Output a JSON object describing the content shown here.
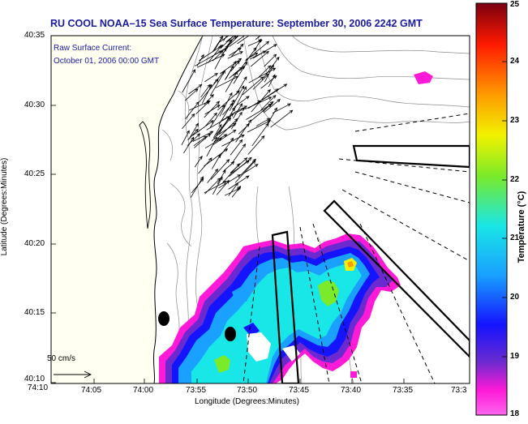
{
  "title": "RU COOL  NOAA–15  Sea Surface Temperature:  September 30, 2006 2242 GMT",
  "current_label_line1": "Raw Surface Current:",
  "current_label_line2": "October 01, 2006 00:00 GMT",
  "scale_label": "50 cm/s",
  "x_axis_label": "Longitude (Degrees:Minutes)",
  "y_axis_label": "Latitude (Degrees:Minutes)",
  "x_ticks": [
    "74:10",
    "74:05",
    "74:00",
    "73:55",
    "73:50",
    "73:45",
    "73:40",
    "73:35",
    "73:3"
  ],
  "y_ticks": [
    "40:35",
    "40:30",
    "40:25",
    "40:20",
    "40:15",
    "40:10"
  ],
  "colorbar": {
    "label": "Temperature (°C)",
    "ticks": [
      "25",
      "24",
      "23",
      "22",
      "21",
      "20",
      "19",
      "18"
    ],
    "colors": {
      "max": "#7a0010",
      "red": "#ff1a00",
      "orange": "#ff9900",
      "yellow": "#f2f200",
      "green": "#7aea2a",
      "cyan": "#19e6e6",
      "sky": "#1aa0ff",
      "blue": "#1414ff",
      "violet": "#6a2acf",
      "magenta": "#ff1ad8",
      "pink": "#ff66ee"
    }
  },
  "map": {
    "land_color": "#fffff2",
    "ocean_color": "#ffffff",
    "coastline_color": "#000000",
    "bathymetry_color": "#8c8c8c"
  }
}
